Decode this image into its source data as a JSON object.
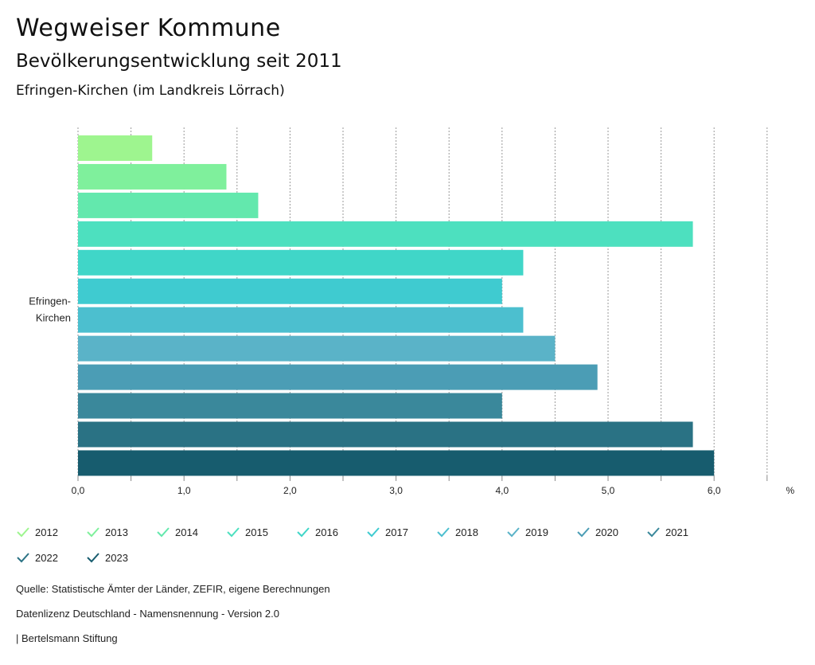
{
  "header": {
    "title": "Wegweiser Kommune",
    "subtitle": "Bevölkerungsentwicklung seit 2011",
    "region": "Efringen-Kirchen (im Landkreis Lörrach)"
  },
  "chart_data": {
    "type": "bar",
    "orientation": "horizontal",
    "categories": [
      "Efringen-Kirchen"
    ],
    "category_label_lines": [
      "Efringen-",
      "Kirchen"
    ],
    "series": [
      {
        "name": "2012",
        "values": [
          0.7
        ],
        "color": "#9ef58f"
      },
      {
        "name": "2013",
        "values": [
          1.4
        ],
        "color": "#7ff09c"
      },
      {
        "name": "2014",
        "values": [
          1.7
        ],
        "color": "#63e8ad"
      },
      {
        "name": "2015",
        "values": [
          5.8
        ],
        "color": "#4de0bf"
      },
      {
        "name": "2016",
        "values": [
          4.2
        ],
        "color": "#40d6c8"
      },
      {
        "name": "2017",
        "values": [
          4.0
        ],
        "color": "#3fcbd0"
      },
      {
        "name": "2018",
        "values": [
          4.2
        ],
        "color": "#4cbfcf"
      },
      {
        "name": "2019",
        "values": [
          4.5
        ],
        "color": "#5ab3c8"
      },
      {
        "name": "2020",
        "values": [
          4.9
        ],
        "color": "#4b9db5"
      },
      {
        "name": "2021",
        "values": [
          4.0
        ],
        "color": "#3a889b"
      },
      {
        "name": "2022",
        "values": [
          5.8
        ],
        "color": "#2a7284"
      },
      {
        "name": "2023",
        "values": [
          6.0
        ],
        "color": "#175c6e"
      }
    ],
    "xlim": [
      0,
      6.5
    ],
    "x_ticks": [
      "0,0",
      "1,0",
      "2,0",
      "3,0",
      "4,0",
      "5,0",
      "6,0"
    ],
    "x_unit": "%",
    "xlabel": "",
    "ylabel": "",
    "grid": true,
    "legend_position": "bottom"
  },
  "footer": {
    "source": "Quelle: Statistische Ämter der Länder, ZEFIR, eigene Berechnungen",
    "license": "Datenlizenz Deutschland - Namensnennung - Version 2.0",
    "credit": "| Bertelsmann Stiftung"
  }
}
